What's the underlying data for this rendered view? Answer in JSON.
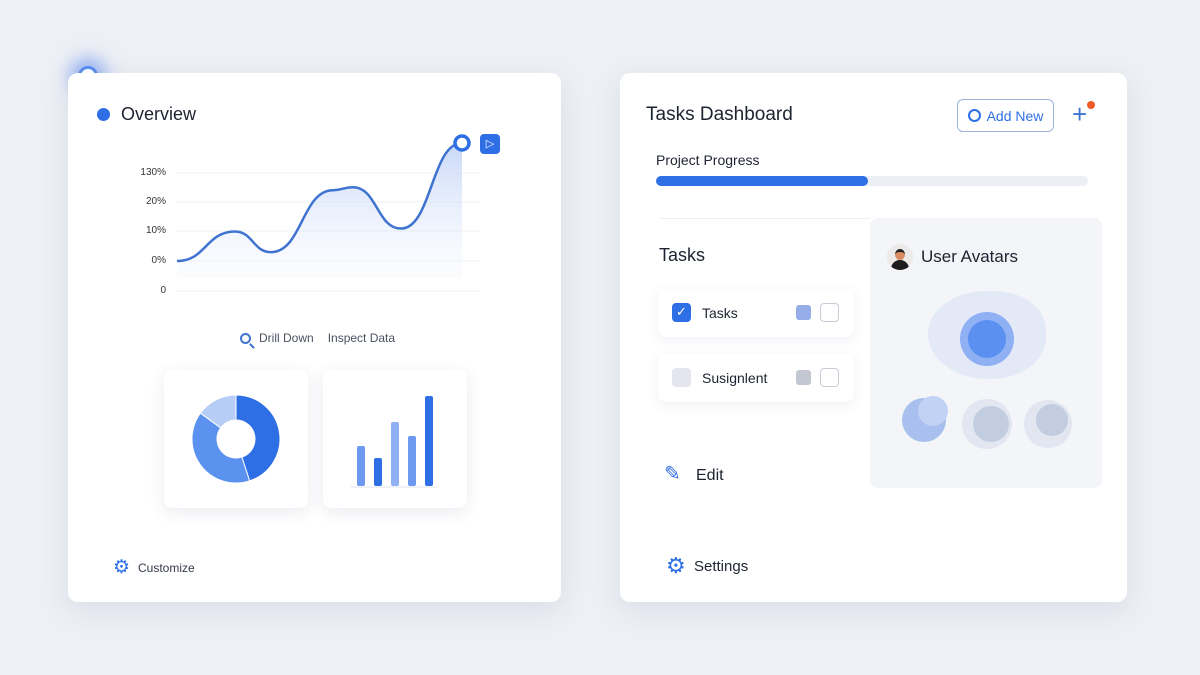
{
  "overview": {
    "title": "Overview",
    "actions": {
      "drill_down": "Drill Down",
      "inspect_data": "Inspect Data"
    },
    "customize": "Customize"
  },
  "chart_data": {
    "type": "area",
    "y_tick_labels": [
      "130%",
      "20%",
      "10%",
      "0%",
      "0"
    ],
    "values": [
      0,
      10,
      3,
      24,
      25,
      11,
      40
    ],
    "grid": true,
    "colors": {
      "line": "#3f73d0",
      "fill": "#c9d8f7"
    }
  },
  "mini_charts": {
    "donut": {
      "values": [
        45,
        40,
        15
      ],
      "colors": [
        "#2f6fe6",
        "#5b92f0",
        "#b8cdf6"
      ]
    },
    "bars": {
      "values": [
        40,
        28,
        64,
        50,
        90
      ],
      "colors": [
        "#6d9af0",
        "#2f6fe6",
        "#8fb0f3",
        "#6d9af0",
        "#2f6fe6"
      ]
    }
  },
  "tasks_dashboard": {
    "title": "Tasks Dashboard",
    "add_new": "Add New",
    "progress_label": "Project Progress",
    "progress_percent": 49,
    "tasks_title": "Tasks",
    "tasks": [
      {
        "label": "Tasks",
        "checked": true
      },
      {
        "label": "Susignlent",
        "checked": false
      }
    ],
    "edit": "Edit",
    "settings": "Settings",
    "avatars_title": "User Avatars"
  },
  "colors": {
    "accent": "#2f6fe6",
    "notification": "#f05a28",
    "background": "#eef0f5"
  }
}
